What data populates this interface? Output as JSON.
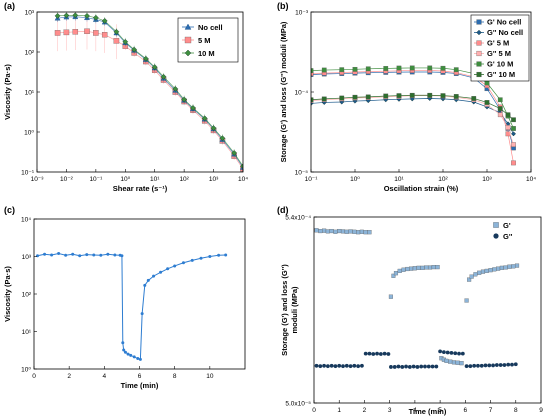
{
  "chart_data": [
    {
      "panel": "(a)",
      "type": "scatter",
      "xlabel": "Shear rate (s⁻¹)",
      "ylabel": "Viscosity (Pa·s)",
      "xscale": "log",
      "yscale": "log",
      "xlim": [
        0.001,
        10000
      ],
      "ylim": [
        0.1,
        1000
      ],
      "xticks": [
        "10⁻³",
        "10⁻²",
        "10⁻¹",
        "10⁰",
        "10¹",
        "10²",
        "10³",
        "10⁴"
      ],
      "yticks": [
        "10⁻¹",
        "10⁰",
        "10¹",
        "10²",
        "10³"
      ],
      "legend_position": "top-right",
      "x": [
        0.005,
        0.01,
        0.02,
        0.05,
        0.1,
        0.2,
        0.5,
        1,
        2,
        5,
        10,
        20,
        50,
        100,
        200,
        500,
        1000,
        2000,
        5000,
        10000
      ],
      "series": [
        {
          "name": "No cell",
          "marker": "triangle",
          "color": "#2b6cb0",
          "values": [
            700,
            750,
            760,
            720,
            650,
            560,
            300,
            170,
            110,
            65,
            40,
            22,
            11,
            6.2,
            3.8,
            2.1,
            1.2,
            0.65,
            0.28,
            0.13
          ]
        },
        {
          "name": "5 M",
          "marker": "square",
          "color": "#ff8c8c",
          "values": [
            300,
            310,
            320,
            330,
            300,
            270,
            190,
            140,
            95,
            58,
            35,
            20,
            10,
            5.8,
            3.5,
            1.9,
            1.1,
            0.6,
            0.25,
            0.12
          ]
        },
        {
          "name": "10 M",
          "marker": "diamond",
          "color": "#3e8e3e",
          "values": [
            800,
            820,
            830,
            800,
            720,
            600,
            320,
            180,
            115,
            68,
            42,
            24,
            12,
            6.5,
            4,
            2.2,
            1.25,
            0.7,
            0.3,
            0.14
          ]
        }
      ]
    },
    {
      "panel": "(b)",
      "type": "scatter",
      "xlabel": "Oscillation strain (%)",
      "ylabel": "Storage (G') and loss (G'') moduli (MPa)",
      "xscale": "log",
      "yscale": "log",
      "xlim": [
        0.1,
        10000
      ],
      "ylim": [
        1e-05,
        0.001
      ],
      "xticks": [
        "10⁻¹",
        "10⁰",
        "10¹",
        "10²",
        "10³",
        "10⁴"
      ],
      "yticks": [
        "10⁻⁵",
        "10⁻⁴",
        "10⁻³"
      ],
      "legend_position": "top-right",
      "x": [
        0.1,
        0.2,
        0.5,
        1,
        2,
        5,
        10,
        20,
        50,
        100,
        200,
        500,
        1000,
        2000,
        3000,
        4000
      ],
      "series": [
        {
          "name": "G' No cell",
          "marker": "square",
          "color": "#2b6cb0",
          "values": [
            0.000165,
            0.000168,
            0.00017,
            0.000172,
            0.000174,
            0.000176,
            0.000177,
            0.000178,
            0.000178,
            0.000176,
            0.00017,
            0.00015,
            0.00011,
            6e-05,
            3.5e-05,
            2e-05
          ]
        },
        {
          "name": "G'' No cell",
          "marker": "diamond",
          "color": "#1d5a8c",
          "values": [
            7.2e-05,
            7.4e-05,
            7.5e-05,
            7.7e-05,
            7.8e-05,
            8e-05,
            8.1e-05,
            8.2e-05,
            8.3e-05,
            8.2e-05,
            8e-05,
            7.5e-05,
            6.5e-05,
            5.5e-05,
            4e-05,
            3e-05
          ]
        },
        {
          "name": "G' 5 M",
          "marker": "square",
          "color": "#ff8c8c",
          "values": [
            0.00017,
            0.000172,
            0.000175,
            0.000178,
            0.00018,
            0.000182,
            0.000184,
            0.000186,
            0.000186,
            0.000183,
            0.000175,
            0.000155,
            0.00012,
            6.5e-05,
            3e-05,
            1.3e-05
          ]
        },
        {
          "name": "G'' 5 M",
          "marker": "square",
          "color": "#ffb0b0",
          "values": [
            7.8e-05,
            8e-05,
            8.2e-05,
            8.4e-05,
            8.5e-05,
            8.7e-05,
            8.8e-05,
            9e-05,
            9e-05,
            8.9e-05,
            8.6e-05,
            8e-05,
            7e-05,
            5.2e-05,
            3.6e-05,
            2.2e-05
          ]
        },
        {
          "name": "G' 10 M",
          "marker": "square",
          "color": "#3e8e3e",
          "values": [
            0.000185,
            0.000188,
            0.00019,
            0.000192,
            0.000195,
            0.000197,
            0.000199,
            0.0002,
            0.0002,
            0.000198,
            0.00019,
            0.00017,
            0.00013,
            8e-05,
            5e-05,
            3.5e-05
          ]
        },
        {
          "name": "G'' 10 M",
          "marker": "square",
          "color": "#2d6e2d",
          "values": [
            8e-05,
            8.2e-05,
            8.4e-05,
            8.6e-05,
            8.7e-05,
            8.9e-05,
            9e-05,
            9.1e-05,
            9.1e-05,
            9e-05,
            8.8e-05,
            8.3e-05,
            7.4e-05,
            6.2e-05,
            5.2e-05,
            4.5e-05
          ]
        }
      ]
    },
    {
      "panel": "(c)",
      "type": "line",
      "xlabel": "Time (min)",
      "ylabel": "Viscosity (Pa·s)",
      "yscale": "log",
      "xlim": [
        0,
        12
      ],
      "ylim": [
        1,
        10000
      ],
      "xticks": [
        "0",
        "2",
        "4",
        "6",
        "8",
        "10"
      ],
      "yticks": [
        "10⁰",
        "10¹",
        "10²",
        "10³",
        "10⁴"
      ],
      "series": [
        {
          "color": "#2e7dd1",
          "x": [
            0.2,
            0.6,
            1,
            1.4,
            1.8,
            2.2,
            2.6,
            3,
            3.4,
            3.8,
            4.2,
            4.6,
            4.9,
            5,
            5.05,
            5.1,
            5.2,
            5.35,
            5.5,
            5.7,
            5.9,
            6.05,
            6.15,
            6.3,
            6.5,
            6.8,
            7.2,
            7.6,
            8,
            8.5,
            9,
            9.5,
            10,
            10.5,
            10.9
          ],
          "values": [
            1050,
            1150,
            1100,
            1200,
            1080,
            1150,
            1050,
            1120,
            1100,
            1080,
            1150,
            1100,
            1080,
            1050,
            5,
            3.2,
            2.8,
            2.5,
            2.3,
            2.1,
            1.9,
            1.8,
            30,
            170,
            230,
            300,
            380,
            470,
            560,
            680,
            790,
            900,
            1000,
            1080,
            1100
          ]
        }
      ]
    },
    {
      "panel": "(d)",
      "type": "scatter",
      "xlabel": "Time (min)",
      "ylabel": "Storage (G') and loss (G'') moduli (MPa)",
      "xlim": [
        0,
        9
      ],
      "ylim": [
        5e-05,
        0.00054
      ],
      "xticks": [
        "0",
        "1",
        "2",
        "3",
        "4",
        "5",
        "6",
        "7",
        "8",
        "9"
      ],
      "yticks": [
        "5.0x10⁻⁵",
        "5.4x10⁻⁴"
      ],
      "legend_position": "top-right",
      "series": [
        {
          "name": "G'",
          "marker": "square",
          "color": "#8cb4d8",
          "x": [
            0.1,
            0.25,
            0.4,
            0.55,
            0.7,
            0.85,
            1,
            1.15,
            1.3,
            1.45,
            1.6,
            1.75,
            1.9,
            2.05,
            2.2,
            3.05,
            3.15,
            3.25,
            3.4,
            3.55,
            3.7,
            3.85,
            4,
            4.15,
            4.3,
            4.45,
            4.6,
            4.75,
            4.9,
            5.05,
            5.15,
            5.25,
            5.4,
            5.55,
            5.7,
            5.85,
            6.05,
            6.15,
            6.25,
            6.4,
            6.55,
            6.7,
            6.85,
            7,
            7.15,
            7.3,
            7.45,
            7.6,
            7.75,
            7.9,
            8.05
          ],
          "values": [
            0.000505,
            0.000503,
            0.000504,
            0.000502,
            0.000503,
            0.000501,
            0.000503,
            0.000502,
            0.000501,
            0.000502,
            0.000501,
            0.0005,
            0.000501,
            0.0005,
            0.0005,
            0.00033,
            0.000385,
            0.000392,
            0.000398,
            0.000401,
            0.000403,
            0.000404,
            0.000405,
            0.000406,
            0.000406,
            0.000407,
            0.000407,
            0.000408,
            0.000408,
            0.000168,
            0.000164,
            0.000161,
            0.000159,
            0.000157,
            0.000156,
            0.000155,
            0.00032,
            0.000375,
            0.000383,
            0.000389,
            0.000393,
            0.000396,
            0.000398,
            0.0004,
            0.000402,
            0.000404,
            0.000406,
            0.000407,
            0.000409,
            0.00041,
            0.000412
          ]
        },
        {
          "name": "G''",
          "marker": "circle",
          "color": "#17395c",
          "x": [
            0.1,
            0.25,
            0.4,
            0.55,
            0.7,
            0.85,
            1,
            1.15,
            1.3,
            1.45,
            1.6,
            1.75,
            1.9,
            2.05,
            2.2,
            2.35,
            2.5,
            2.65,
            2.8,
            2.95,
            3.05,
            3.2,
            3.35,
            3.5,
            3.65,
            3.8,
            3.95,
            4.1,
            4.25,
            4.4,
            4.55,
            4.7,
            4.85,
            5,
            5.15,
            5.3,
            5.45,
            5.6,
            5.75,
            5.9,
            6.05,
            6.2,
            6.35,
            6.5,
            6.65,
            6.8,
            6.95,
            7.1,
            7.25,
            7.4,
            7.55,
            7.7,
            7.85,
            8
          ],
          "values": [
            0.000148,
            0.000147,
            0.000148,
            0.000147,
            0.000148,
            0.000147,
            0.000148,
            0.000147,
            0.000148,
            0.000147,
            0.000148,
            0.000147,
            0.000148,
            0.00018,
            0.00018,
            0.000179,
            0.00018,
            0.000179,
            0.00018,
            0.000179,
            0.000145,
            0.000145,
            0.000146,
            0.000145,
            0.000146,
            0.000145,
            0.000146,
            0.000145,
            0.000146,
            0.000146,
            0.000146,
            0.000146,
            0.000146,
            0.000186,
            0.000184,
            0.000183,
            0.000182,
            0.000181,
            0.00018,
            0.00018,
            0.000147,
            0.000147,
            0.000148,
            0.000148,
            0.000148,
            0.000149,
            0.000149,
            0.000149,
            0.00015,
            0.00015,
            0.00015,
            0.000151,
            0.000151,
            0.000152
          ]
        }
      ]
    }
  ]
}
